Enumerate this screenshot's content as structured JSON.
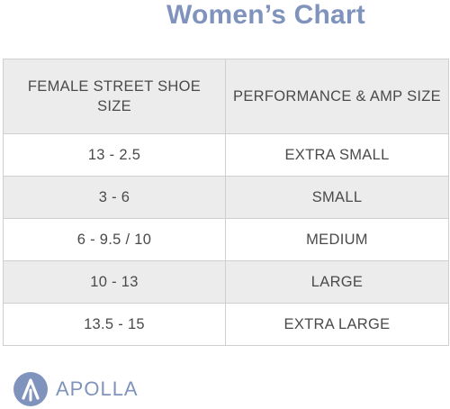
{
  "title": "Women’s Chart",
  "table": {
    "headers": [
      "FEMALE STREET SHOE SIZE",
      "PERFORMANCE & AMP SIZE"
    ],
    "rows": [
      {
        "shoe_size": "13 - 2.5",
        "amp_size": "EXTRA SMALL"
      },
      {
        "shoe_size": "3 - 6",
        "amp_size": "SMALL"
      },
      {
        "shoe_size": "6 - 9.5 /  10",
        "amp_size": "MEDIUM"
      },
      {
        "shoe_size": "10 - 13",
        "amp_size": "LARGE"
      },
      {
        "shoe_size": "13.5 - 15",
        "amp_size": "EXTRA LARGE"
      }
    ]
  },
  "brand": {
    "name": "APOLLA",
    "logo_icon": "apolla-logo-icon",
    "color": "#7f93bd"
  },
  "colors": {
    "title": "#7f93bd",
    "shaded_row": "#ececec",
    "text": "#4a4a4a"
  }
}
